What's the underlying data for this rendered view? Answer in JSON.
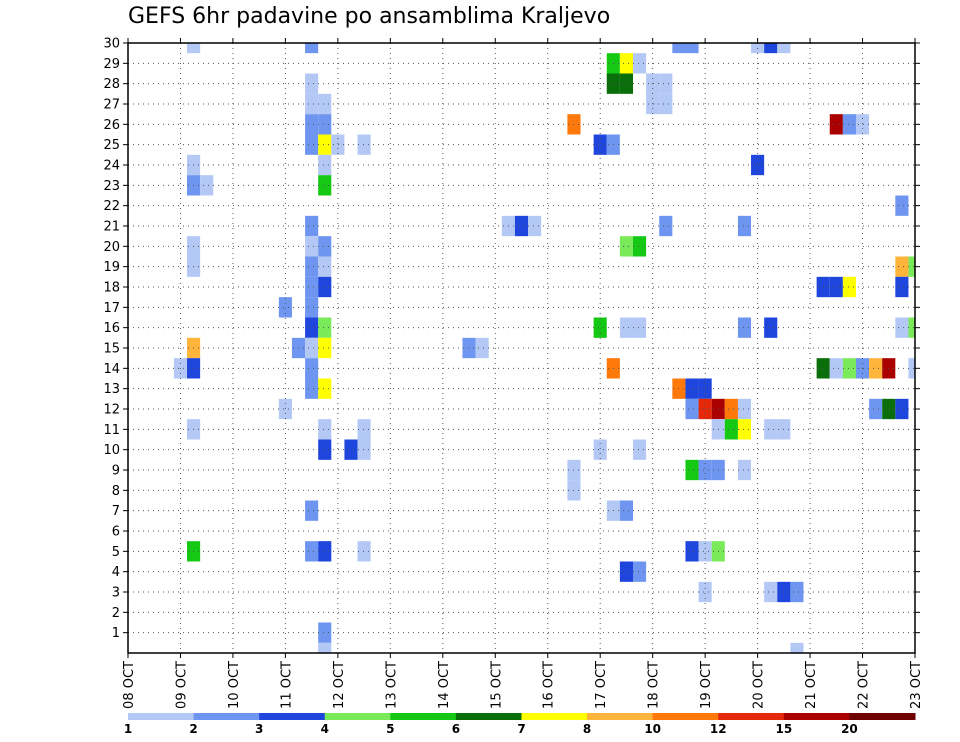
{
  "chart_data": {
    "type": "heatmap",
    "title": "GEFS 6hr padavine po ansamblima Kraljevo",
    "xlabel": "",
    "ylabel": "",
    "x_ticks": [
      "08 OCT",
      "09 OCT",
      "10 OCT",
      "11 OCT",
      "12 OCT",
      "13 OCT",
      "14 OCT",
      "15 OCT",
      "16 OCT",
      "17 OCT",
      "18 OCT",
      "19 OCT",
      "20 OCT",
      "21 OCT",
      "22 OCT",
      "23 OCT"
    ],
    "y_ticks": [
      "1",
      "2",
      "3",
      "4",
      "5",
      "6",
      "7",
      "8",
      "9",
      "10",
      "11",
      "12",
      "13",
      "14",
      "15",
      "16",
      "17",
      "18",
      "19",
      "20",
      "21",
      "22",
      "23",
      "24",
      "25",
      "26",
      "27",
      "28",
      "29",
      "30"
    ],
    "xlim": [
      0,
      60
    ],
    "ylim": [
      0,
      30
    ],
    "x_unit": "6-hour step from 08 OCT 00Z",
    "y_unit": "ensemble member",
    "grid": true,
    "colorbar": {
      "position": "bottom",
      "labels": [
        "1",
        "2",
        "3",
        "4",
        "5",
        "6",
        "7",
        "8",
        "10",
        "12",
        "15",
        "20"
      ],
      "colors": [
        "#b4c8f5",
        "#6e96f0",
        "#1e46dc",
        "#7bea5a",
        "#14c814",
        "#0a6e0a",
        "#ffff00",
        "#ffb43c",
        "#ff780a",
        "#e6280a",
        "#aa0000",
        "#6e0000"
      ]
    },
    "cells": [
      [
        5,
        30,
        1
      ],
      [
        14,
        30,
        2
      ],
      [
        42,
        30,
        2
      ],
      [
        43,
        30,
        2
      ],
      [
        48,
        30,
        1
      ],
      [
        49,
        30,
        3
      ],
      [
        50,
        30,
        1
      ],
      [
        37,
        29,
        5
      ],
      [
        38,
        29,
        7
      ],
      [
        39,
        29,
        1
      ],
      [
        14,
        28,
        1
      ],
      [
        37,
        28,
        6
      ],
      [
        38,
        28,
        6
      ],
      [
        40,
        28,
        1
      ],
      [
        41,
        28,
        1
      ],
      [
        14,
        27,
        1
      ],
      [
        15,
        27,
        1
      ],
      [
        40,
        27,
        1
      ],
      [
        41,
        27,
        1
      ],
      [
        14,
        26,
        2
      ],
      [
        15,
        26,
        2
      ],
      [
        34,
        26,
        9
      ],
      [
        54,
        26,
        11
      ],
      [
        55,
        26,
        2
      ],
      [
        56,
        26,
        1
      ],
      [
        14,
        25,
        2
      ],
      [
        15,
        25,
        7
      ],
      [
        16,
        25,
        1
      ],
      [
        18,
        25,
        1
      ],
      [
        36,
        25,
        3
      ],
      [
        37,
        25,
        2
      ],
      [
        5,
        24,
        1
      ],
      [
        15,
        24,
        1
      ],
      [
        48,
        24,
        3
      ],
      [
        5,
        23,
        2
      ],
      [
        6,
        23,
        1
      ],
      [
        15,
        23,
        5
      ],
      [
        59,
        22,
        2
      ],
      [
        14,
        21,
        2
      ],
      [
        29,
        21,
        1
      ],
      [
        30,
        21,
        3
      ],
      [
        31,
        21,
        1
      ],
      [
        41,
        21,
        2
      ],
      [
        47,
        21,
        2
      ],
      [
        5,
        20,
        1
      ],
      [
        14,
        20,
        1
      ],
      [
        15,
        20,
        2
      ],
      [
        38,
        20,
        4
      ],
      [
        39,
        20,
        5
      ],
      [
        5,
        19,
        1
      ],
      [
        14,
        19,
        2
      ],
      [
        15,
        19,
        1
      ],
      [
        59,
        19,
        8
      ],
      [
        60,
        19,
        4
      ],
      [
        14,
        18,
        2
      ],
      [
        15,
        18,
        3
      ],
      [
        53,
        18,
        3
      ],
      [
        54,
        18,
        3
      ],
      [
        55,
        18,
        7
      ],
      [
        59,
        18,
        3
      ],
      [
        12,
        17,
        2
      ],
      [
        14,
        17,
        2
      ],
      [
        14,
        16,
        3
      ],
      [
        15,
        16,
        4
      ],
      [
        36,
        16,
        5
      ],
      [
        38,
        16,
        1
      ],
      [
        39,
        16,
        1
      ],
      [
        47,
        16,
        2
      ],
      [
        49,
        16,
        3
      ],
      [
        59,
        16,
        1
      ],
      [
        60,
        16,
        4
      ],
      [
        5,
        15,
        8
      ],
      [
        13,
        15,
        2
      ],
      [
        14,
        15,
        1
      ],
      [
        15,
        15,
        7
      ],
      [
        26,
        15,
        2
      ],
      [
        27,
        15,
        1
      ],
      [
        4,
        14,
        1
      ],
      [
        5,
        14,
        3
      ],
      [
        14,
        14,
        2
      ],
      [
        37,
        14,
        9
      ],
      [
        53,
        14,
        6
      ],
      [
        54,
        14,
        1
      ],
      [
        55,
        14,
        4
      ],
      [
        56,
        14,
        2
      ],
      [
        57,
        14,
        8
      ],
      [
        58,
        14,
        11
      ],
      [
        60,
        14,
        1
      ],
      [
        14,
        13,
        2
      ],
      [
        15,
        13,
        7
      ],
      [
        42,
        13,
        9
      ],
      [
        43,
        13,
        3
      ],
      [
        44,
        13,
        3
      ],
      [
        12,
        12,
        1
      ],
      [
        43,
        12,
        2
      ],
      [
        44,
        12,
        10
      ],
      [
        45,
        12,
        11
      ],
      [
        46,
        12,
        9
      ],
      [
        47,
        12,
        1
      ],
      [
        57,
        12,
        2
      ],
      [
        58,
        12,
        6
      ],
      [
        59,
        12,
        3
      ],
      [
        5,
        11,
        1
      ],
      [
        15,
        11,
        1
      ],
      [
        18,
        11,
        1
      ],
      [
        45,
        11,
        1
      ],
      [
        46,
        11,
        5
      ],
      [
        47,
        11,
        7
      ],
      [
        49,
        11,
        1
      ],
      [
        50,
        11,
        1
      ],
      [
        15,
        10,
        3
      ],
      [
        17,
        10,
        3
      ],
      [
        18,
        10,
        1
      ],
      [
        36,
        10,
        1
      ],
      [
        39,
        10,
        1
      ],
      [
        34,
        9,
        1
      ],
      [
        43,
        9,
        5
      ],
      [
        44,
        9,
        2
      ],
      [
        45,
        9,
        2
      ],
      [
        47,
        9,
        1
      ],
      [
        34,
        8,
        1
      ],
      [
        14,
        7,
        2
      ],
      [
        37,
        7,
        1
      ],
      [
        38,
        7,
        2
      ],
      [
        5,
        5,
        5
      ],
      [
        14,
        5,
        2
      ],
      [
        15,
        5,
        3
      ],
      [
        18,
        5,
        1
      ],
      [
        43,
        5,
        3
      ],
      [
        44,
        5,
        1
      ],
      [
        45,
        5,
        4
      ],
      [
        38,
        4,
        3
      ],
      [
        39,
        4,
        2
      ],
      [
        44,
        3,
        1
      ],
      [
        49,
        3,
        1
      ],
      [
        50,
        3,
        3
      ],
      [
        51,
        3,
        2
      ],
      [
        15,
        1,
        2
      ],
      [
        15,
        0,
        1
      ],
      [
        51,
        0,
        1
      ]
    ]
  }
}
